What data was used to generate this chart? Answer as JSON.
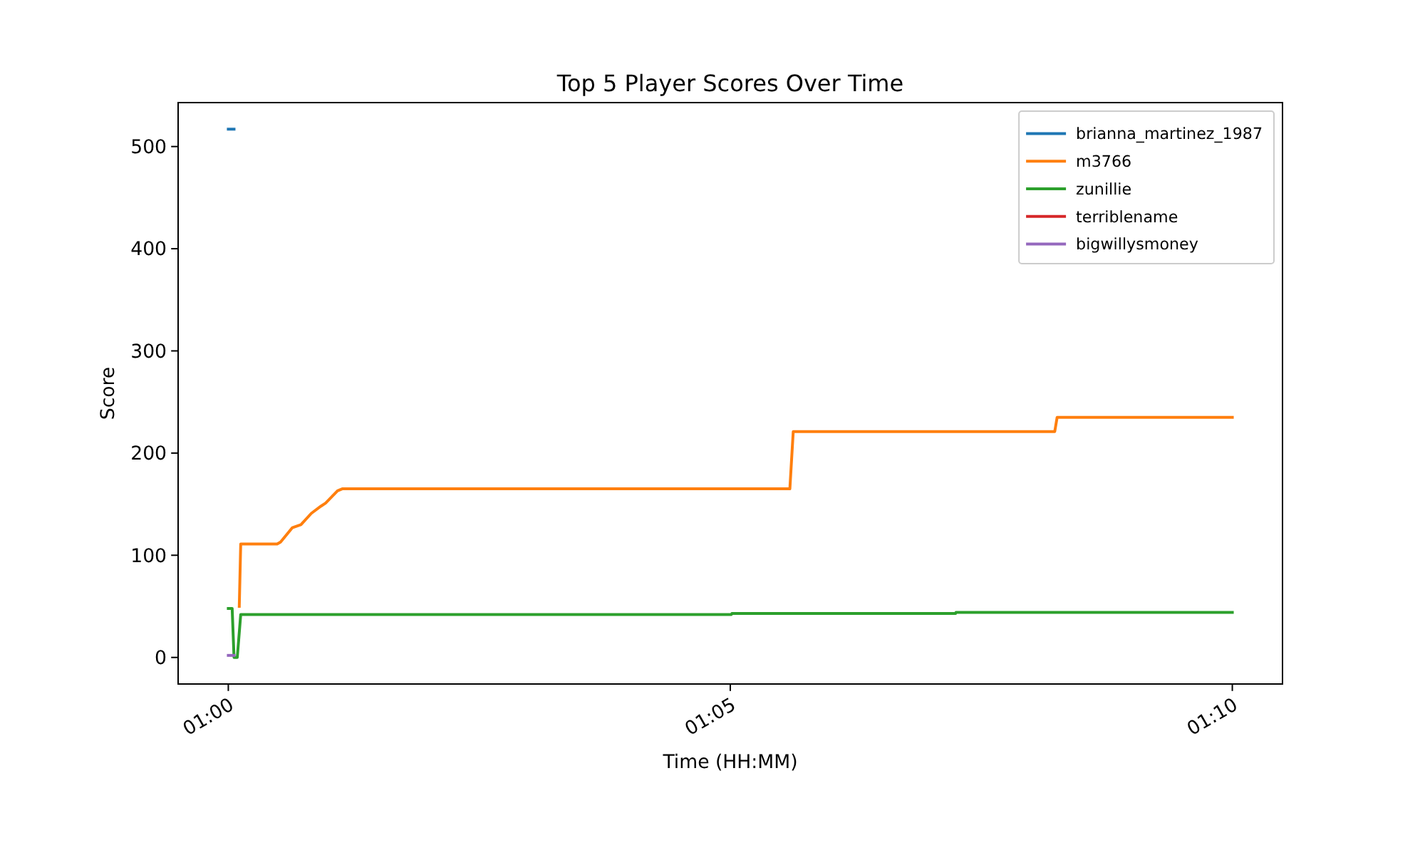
{
  "chart_data": {
    "type": "line",
    "title": "Top 5 Player Scores Over Time",
    "xlabel": "Time (HH:MM)",
    "ylabel": "Score",
    "xlim": [
      0.99167,
      1.175
    ],
    "xticks": [
      {
        "value": 1,
        "label": "01:00"
      },
      {
        "value": 1.08333,
        "label": "01:05"
      },
      {
        "value": 1.16667,
        "label": "01:10"
      }
    ],
    "ylim": [
      -26,
      543
    ],
    "yticks": [
      0,
      100,
      200,
      300,
      400,
      500
    ],
    "legend": "top right",
    "series": [
      {
        "name": "brianna_martinez_1987",
        "color": "#1f77b4",
        "x": [
          1.0,
          1.00095
        ],
        "values": [
          517,
          517
        ]
      },
      {
        "name": "m3766",
        "color": "#ff7f0e",
        "x": [
          1.00182,
          1.00206,
          1.00811,
          1.00868,
          1.01064,
          1.01206,
          1.01378,
          1.01537,
          1.01615,
          1.01813,
          1.01891,
          1.09322,
          1.09378,
          1.13719,
          1.13759,
          1.16667
        ],
        "values": [
          50,
          111,
          111,
          113,
          127,
          130,
          141,
          148,
          151,
          163,
          165,
          165,
          221,
          221,
          235,
          235
        ]
      },
      {
        "name": "zunillie",
        "color": "#2ca02c",
        "x": [
          1.0,
          1.00064,
          1.00095,
          1.00149,
          1.00206,
          1.08352,
          1.0836,
          1.12073,
          1.1208,
          1.16667
        ],
        "values": [
          48,
          48,
          0,
          0,
          42,
          42,
          43,
          43,
          44,
          44
        ]
      },
      {
        "name": "terriblename",
        "color": "#d62728"
      },
      {
        "name": "bigwillysmoney",
        "color": "#9467bd",
        "x": [
          1.0,
          1.00095
        ],
        "values": [
          2,
          2
        ]
      }
    ]
  }
}
